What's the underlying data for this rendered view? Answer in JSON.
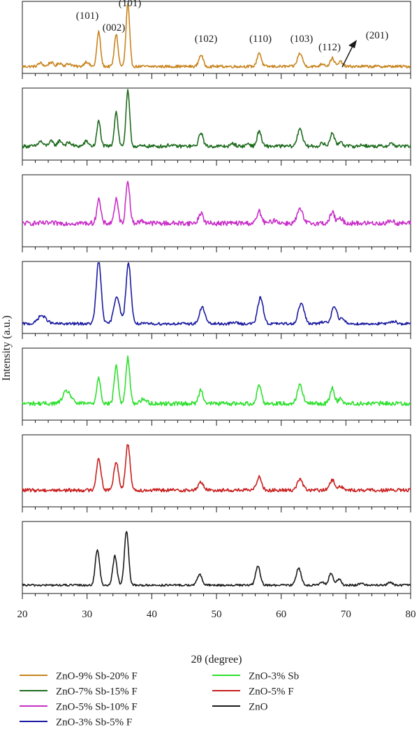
{
  "chart_data": {
    "type": "line",
    "title": "",
    "xlabel": "2θ (degree)",
    "ylabel": "Intensity (a.u.)",
    "xlim": [
      20,
      80
    ],
    "xticks": [
      20,
      30,
      40,
      50,
      60,
      70,
      80
    ],
    "layout": "stacked-panels",
    "grid": false,
    "legend_placement": "bottom",
    "series": [
      {
        "name": "ZnO-9% Sb-20% F",
        "color": "#c8841e",
        "baseline": 0.08,
        "noise": 0.02,
        "peaks": [
          {
            "x": 22.8,
            "h": 0.05,
            "w": 0.35
          },
          {
            "x": 24.4,
            "h": 0.06,
            "w": 0.35
          },
          {
            "x": 25.8,
            "h": 0.05,
            "w": 0.35
          },
          {
            "x": 27.2,
            "h": 0.04,
            "w": 0.4
          },
          {
            "x": 29.9,
            "h": 0.07,
            "w": 0.35
          },
          {
            "x": 31.8,
            "h": 0.5,
            "w": 0.28
          },
          {
            "x": 34.5,
            "h": 0.47,
            "w": 0.28
          },
          {
            "x": 36.3,
            "h": 0.9,
            "w": 0.28
          },
          {
            "x": 47.6,
            "h": 0.17,
            "w": 0.32
          },
          {
            "x": 56.6,
            "h": 0.2,
            "w": 0.32
          },
          {
            "x": 62.9,
            "h": 0.19,
            "w": 0.38
          },
          {
            "x": 66.4,
            "h": 0.04,
            "w": 0.35
          },
          {
            "x": 67.9,
            "h": 0.12,
            "w": 0.32
          },
          {
            "x": 69.2,
            "h": 0.07,
            "w": 0.32
          }
        ],
        "annotations": [
          {
            "text": "(101)",
            "x": 31.8
          },
          {
            "text": "(002)",
            "x": 34.5
          },
          {
            "text": "(101)",
            "x": 36.3
          },
          {
            "text": "(102)",
            "x": 47.6
          },
          {
            "text": "(110)",
            "x": 56.6
          },
          {
            "text": "(103)",
            "x": 62.9
          },
          {
            "text": "(112)",
            "x": 67.9
          },
          {
            "text": "(201)",
            "x": 69.2
          }
        ]
      },
      {
        "name": "ZnO-7% Sb-15% F",
        "color": "#1e6b1e",
        "baseline": 0.18,
        "noise": 0.025,
        "peaks": [
          {
            "x": 22.8,
            "h": 0.07,
            "w": 0.35
          },
          {
            "x": 24.4,
            "h": 0.07,
            "w": 0.35
          },
          {
            "x": 25.8,
            "h": 0.08,
            "w": 0.35
          },
          {
            "x": 27.2,
            "h": 0.05,
            "w": 0.4
          },
          {
            "x": 29.9,
            "h": 0.07,
            "w": 0.35
          },
          {
            "x": 31.8,
            "h": 0.36,
            "w": 0.28
          },
          {
            "x": 34.5,
            "h": 0.5,
            "w": 0.28
          },
          {
            "x": 36.3,
            "h": 0.8,
            "w": 0.28
          },
          {
            "x": 42.8,
            "h": 0.02,
            "w": 0.3
          },
          {
            "x": 47.6,
            "h": 0.2,
            "w": 0.32
          },
          {
            "x": 52.6,
            "h": 0.04,
            "w": 0.3
          },
          {
            "x": 54.9,
            "h": 0.04,
            "w": 0.3
          },
          {
            "x": 56.6,
            "h": 0.22,
            "w": 0.32
          },
          {
            "x": 62.9,
            "h": 0.26,
            "w": 0.38
          },
          {
            "x": 66.4,
            "h": 0.04,
            "w": 0.35
          },
          {
            "x": 67.9,
            "h": 0.2,
            "w": 0.32
          },
          {
            "x": 69.2,
            "h": 0.07,
            "w": 0.32
          },
          {
            "x": 72.6,
            "h": 0.02,
            "w": 0.35
          },
          {
            "x": 77.0,
            "h": 0.04,
            "w": 0.35
          }
        ]
      },
      {
        "name": "ZnO-5% Sb-10% F",
        "color": "#c82ec8",
        "baseline": 0.32,
        "noise": 0.035,
        "peaks": [
          {
            "x": 31.8,
            "h": 0.35,
            "w": 0.3
          },
          {
            "x": 34.5,
            "h": 0.34,
            "w": 0.3
          },
          {
            "x": 36.3,
            "h": 0.62,
            "w": 0.3
          },
          {
            "x": 38.5,
            "h": 0.03,
            "w": 0.5
          },
          {
            "x": 47.6,
            "h": 0.15,
            "w": 0.34
          },
          {
            "x": 56.6,
            "h": 0.17,
            "w": 0.34
          },
          {
            "x": 59.0,
            "h": 0.04,
            "w": 0.5
          },
          {
            "x": 62.9,
            "h": 0.2,
            "w": 0.42
          },
          {
            "x": 67.9,
            "h": 0.16,
            "w": 0.34
          },
          {
            "x": 69.2,
            "h": 0.07,
            "w": 0.34
          },
          {
            "x": 77.0,
            "h": 0.04,
            "w": 0.35
          }
        ]
      },
      {
        "name": "ZnO-3% Sb-5% F",
        "color": "#1a1aa0",
        "baseline": 0.12,
        "noise": 0.02,
        "peaks": [
          {
            "x": 22.8,
            "h": 0.1,
            "w": 0.5
          },
          {
            "x": 23.6,
            "h": 0.05,
            "w": 0.5
          },
          {
            "x": 31.8,
            "h": 0.9,
            "w": 0.38
          },
          {
            "x": 34.6,
            "h": 0.4,
            "w": 0.45
          },
          {
            "x": 36.4,
            "h": 0.88,
            "w": 0.38
          },
          {
            "x": 47.8,
            "h": 0.24,
            "w": 0.42
          },
          {
            "x": 52.8,
            "h": 0.02,
            "w": 0.4
          },
          {
            "x": 56.8,
            "h": 0.38,
            "w": 0.42
          },
          {
            "x": 63.1,
            "h": 0.3,
            "w": 0.45
          },
          {
            "x": 66.6,
            "h": 0.03,
            "w": 0.4
          },
          {
            "x": 68.2,
            "h": 0.26,
            "w": 0.4
          },
          {
            "x": 69.4,
            "h": 0.07,
            "w": 0.4
          },
          {
            "x": 77.4,
            "h": 0.04,
            "w": 0.4
          }
        ]
      },
      {
        "name": "ZnO-3% Sb",
        "color": "#2ee02e",
        "baseline": 0.22,
        "noise": 0.03,
        "peaks": [
          {
            "x": 26.9,
            "h": 0.18,
            "w": 0.6
          },
          {
            "x": 31.8,
            "h": 0.38,
            "w": 0.3
          },
          {
            "x": 34.5,
            "h": 0.55,
            "w": 0.3
          },
          {
            "x": 36.3,
            "h": 0.66,
            "w": 0.3
          },
          {
            "x": 38.7,
            "h": 0.06,
            "w": 0.5
          },
          {
            "x": 47.6,
            "h": 0.2,
            "w": 0.34
          },
          {
            "x": 56.6,
            "h": 0.27,
            "w": 0.34
          },
          {
            "x": 62.9,
            "h": 0.28,
            "w": 0.4
          },
          {
            "x": 67.9,
            "h": 0.22,
            "w": 0.34
          },
          {
            "x": 69.2,
            "h": 0.07,
            "w": 0.34
          }
        ]
      },
      {
        "name": "ZnO-5% F",
        "color": "#c81e1e",
        "baseline": 0.22,
        "noise": 0.025,
        "peaks": [
          {
            "x": 31.8,
            "h": 0.46,
            "w": 0.35
          },
          {
            "x": 34.5,
            "h": 0.42,
            "w": 0.35
          },
          {
            "x": 36.3,
            "h": 0.66,
            "w": 0.35
          },
          {
            "x": 47.6,
            "h": 0.12,
            "w": 0.38
          },
          {
            "x": 56.6,
            "h": 0.2,
            "w": 0.38
          },
          {
            "x": 62.9,
            "h": 0.16,
            "w": 0.42
          },
          {
            "x": 67.9,
            "h": 0.14,
            "w": 0.42
          },
          {
            "x": 69.2,
            "h": 0.05,
            "w": 0.4
          }
        ]
      },
      {
        "name": "ZnO",
        "color": "#1a1a1a",
        "baseline": 0.1,
        "noise": 0.015,
        "peaks": [
          {
            "x": 31.6,
            "h": 0.52,
            "w": 0.32
          },
          {
            "x": 34.3,
            "h": 0.42,
            "w": 0.32
          },
          {
            "x": 36.1,
            "h": 0.78,
            "w": 0.32
          },
          {
            "x": 47.4,
            "h": 0.16,
            "w": 0.35
          },
          {
            "x": 56.4,
            "h": 0.27,
            "w": 0.36
          },
          {
            "x": 62.7,
            "h": 0.25,
            "w": 0.38
          },
          {
            "x": 66.3,
            "h": 0.04,
            "w": 0.35
          },
          {
            "x": 67.7,
            "h": 0.17,
            "w": 0.34
          },
          {
            "x": 68.9,
            "h": 0.09,
            "w": 0.32
          },
          {
            "x": 72.4,
            "h": 0.03,
            "w": 0.35
          },
          {
            "x": 76.8,
            "h": 0.04,
            "w": 0.35
          }
        ]
      }
    ]
  },
  "legend": {
    "left": [
      {
        "label": "ZnO-9% Sb-20% F",
        "color": "#c8841e"
      },
      {
        "label": "ZnO-7% Sb-15% F",
        "color": "#1e6b1e"
      },
      {
        "label": "ZnO-5% Sb-10% F",
        "color": "#c82ec8"
      },
      {
        "label": "ZnO-3% Sb-5% F",
        "color": "#1a1aa0"
      }
    ],
    "right": [
      {
        "label": "ZnO-3% Sb",
        "color": "#2ee02e"
      },
      {
        "label": "ZnO-5% F",
        "color": "#c81e1e"
      },
      {
        "label": "ZnO",
        "color": "#1a1a1a"
      }
    ]
  }
}
